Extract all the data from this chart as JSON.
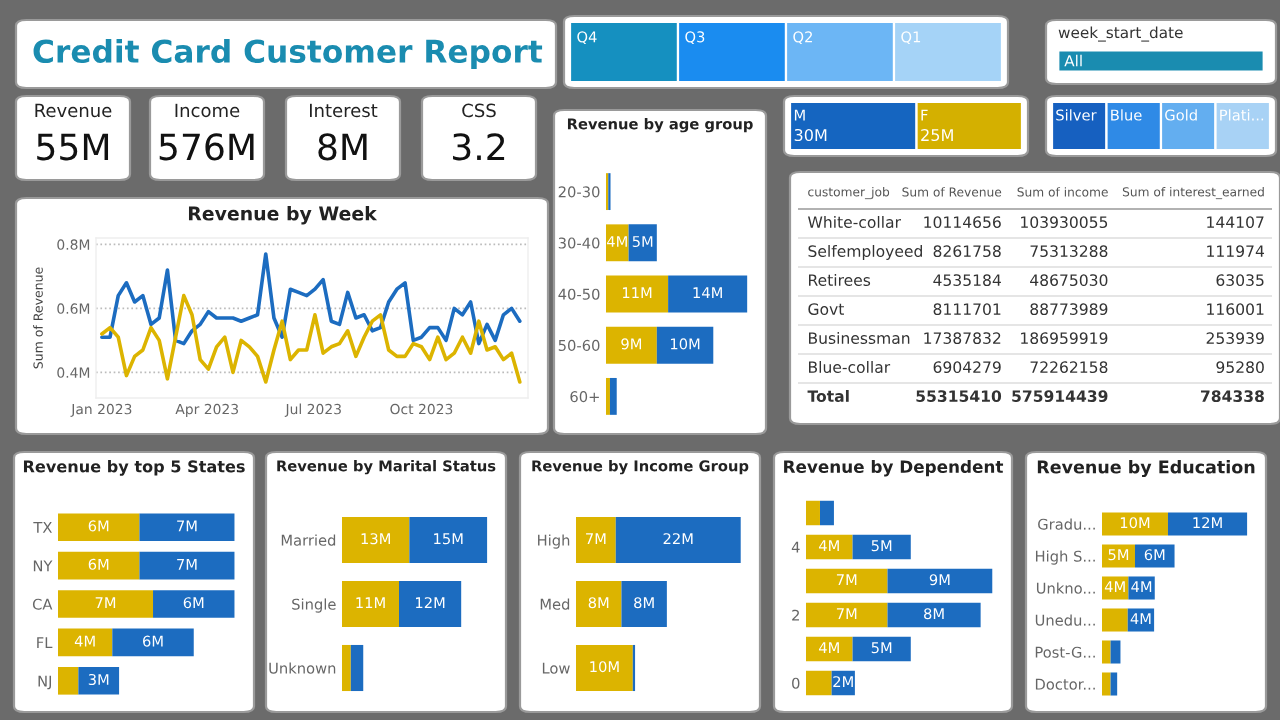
{
  "chart_data": [
    {
      "type": "other",
      "title": "Credit Card Customer Report",
      "color": "#1a8cb0"
    },
    {
      "type": "other",
      "categories": [
        "Q4",
        "Q3",
        "Q2",
        "Q1"
      ],
      "colors": [
        "#1590c0",
        "#1a8cf0",
        "#6cb6f5",
        "#a5d3f7"
      ]
    },
    {
      "type": "other",
      "title": "week_start_date",
      "annotations": [
        "All"
      ],
      "color": "#1a8cb0"
    },
    {
      "type": "other",
      "title": "Revenue",
      "annotations": [
        "55M"
      ]
    },
    {
      "type": "other",
      "title": "Income",
      "annotations": [
        "576M"
      ]
    },
    {
      "type": "other",
      "title": "Interest",
      "annotations": [
        "8M"
      ]
    },
    {
      "type": "other",
      "title": "CSS",
      "annotations": [
        "3.2"
      ]
    },
    {
      "type": "bar",
      "orientation": "horizontal",
      "stacked": true,
      "title": "Revenue by age group",
      "categories": [
        "20-30",
        "30-40",
        "40-50",
        "50-60",
        "60+"
      ],
      "series": [
        {
          "color": "#dcb400",
          "values": [
            0.4,
            4,
            11,
            9,
            0.7
          ],
          "value_labels": [
            null,
            "4M",
            "11M",
            "9M",
            null
          ]
        },
        {
          "color": "#1c6cc0",
          "values": [
            0.4,
            5,
            14,
            10,
            1.2
          ],
          "value_labels": [
            null,
            "5M",
            "14M",
            "10M",
            null
          ]
        }
      ]
    },
    {
      "type": "other",
      "categories": [
        "M",
        "F"
      ],
      "values": [
        30,
        25
      ],
      "value_labels": [
        "30M",
        "25M"
      ],
      "colors": [
        "#1565c0",
        "#d4b000"
      ]
    },
    {
      "type": "other",
      "categories": [
        "Silver",
        "Blue",
        "Gold",
        "Plati..."
      ],
      "colors": [
        "#1660c0",
        "#2f8ae6",
        "#63aef0",
        "#a8d2f5"
      ]
    },
    {
      "type": "line",
      "title": "Revenue by Week",
      "ylabel": "Sum of Revenue",
      "grid": "y",
      "x": [
        "2023-01-01",
        "2023-01-08",
        "2023-01-15",
        "2023-01-22",
        "2023-01-29",
        "2023-02-05",
        "2023-02-12",
        "2023-02-19",
        "2023-02-26",
        "2023-03-05",
        "2023-03-12",
        "2023-03-19",
        "2023-03-26",
        "2023-04-02",
        "2023-04-09",
        "2023-04-16",
        "2023-04-23",
        "2023-04-30",
        "2023-05-07",
        "2023-05-14",
        "2023-05-21",
        "2023-05-28",
        "2023-06-04",
        "2023-06-11",
        "2023-06-18",
        "2023-06-25",
        "2023-07-02",
        "2023-07-09",
        "2023-07-16",
        "2023-07-23",
        "2023-07-30",
        "2023-08-06",
        "2023-08-13",
        "2023-08-20",
        "2023-08-27",
        "2023-09-03",
        "2023-09-10",
        "2023-09-17",
        "2023-09-24",
        "2023-10-01",
        "2023-10-08",
        "2023-10-15",
        "2023-10-22",
        "2023-10-29",
        "2023-11-05",
        "2023-11-12",
        "2023-11-19",
        "2023-11-26",
        "2023-12-03",
        "2023-12-10",
        "2023-12-17",
        "2023-12-24"
      ],
      "series": [
        {
          "color": "#1c6cc0",
          "values": [
            0.51,
            0.51,
            0.64,
            0.68,
            0.62,
            0.64,
            0.55,
            0.57,
            0.72,
            0.5,
            0.49,
            0.53,
            0.55,
            0.59,
            0.57,
            0.57,
            0.57,
            0.56,
            0.57,
            0.58,
            0.77,
            0.57,
            0.51,
            0.66,
            0.65,
            0.64,
            0.66,
            0.69,
            0.56,
            0.55,
            0.65,
            0.57,
            0.58,
            0.53,
            0.54,
            0.62,
            0.66,
            0.68,
            0.5,
            0.51,
            0.54,
            0.54,
            0.5,
            0.6,
            0.58,
            0.62,
            0.49,
            0.55,
            0.5,
            0.58,
            0.6,
            0.56
          ]
        },
        {
          "color": "#dcb400",
          "values": [
            0.52,
            0.54,
            0.51,
            0.39,
            0.45,
            0.47,
            0.54,
            0.5,
            0.38,
            0.51,
            0.64,
            0.58,
            0.44,
            0.41,
            0.48,
            0.51,
            0.4,
            0.5,
            0.48,
            0.45,
            0.37,
            0.47,
            0.56,
            0.44,
            0.47,
            0.47,
            0.58,
            0.46,
            0.48,
            0.49,
            0.53,
            0.45,
            0.51,
            0.56,
            0.58,
            0.47,
            0.45,
            0.45,
            0.49,
            0.48,
            0.44,
            0.51,
            0.44,
            0.46,
            0.51,
            0.46,
            0.56,
            0.47,
            0.48,
            0.44,
            0.46,
            0.37
          ]
        }
      ],
      "xlim": [
        "2022-12-27",
        "2023-12-31"
      ],
      "xticks": [
        {
          "value": "2023-01-01",
          "label": "Jan 2023"
        },
        {
          "value": "2023-04-01",
          "label": "Apr 2023"
        },
        {
          "value": "2023-07-01",
          "label": "Jul 2023"
        },
        {
          "value": "2023-10-01",
          "label": "Oct 2023"
        }
      ],
      "ylim": [
        0.32,
        0.82
      ],
      "yticks": [
        {
          "value": 0.4,
          "label": "0.4M"
        },
        {
          "value": 0.6,
          "label": "0.6M"
        },
        {
          "value": 0.8,
          "label": "0.8M"
        }
      ]
    },
    {
      "type": "other",
      "categories": [
        "customer_job",
        "Sum of Revenue",
        "Sum of income",
        "Sum of interest_earned"
      ],
      "y_categories": [
        "White-collar",
        "Selfemployeed",
        "Retirees",
        "Govt",
        "Businessman",
        "Blue-collar",
        "Total"
      ],
      "cell_labels": [
        [
          "10114656",
          "103930055",
          "144107"
        ],
        [
          "8261758",
          "75313288",
          "111974"
        ],
        [
          "4535184",
          "48675030",
          "63035"
        ],
        [
          "8111701",
          "88773989",
          "116001"
        ],
        [
          "17387832",
          "186959919",
          "253939"
        ],
        [
          "6904279",
          "72262158",
          "95280"
        ],
        [
          "55315410",
          "575914439",
          "784338"
        ]
      ]
    },
    {
      "type": "bar",
      "orientation": "horizontal",
      "stacked": true,
      "title": "Revenue by top 5 States",
      "categories": [
        "TX",
        "NY",
        "CA",
        "FL",
        "NJ"
      ],
      "series": [
        {
          "color": "#dcb400",
          "values": [
            6,
            6,
            7,
            4,
            1.5
          ],
          "value_labels": [
            "6M",
            "6M",
            "7M",
            "4M",
            null
          ]
        },
        {
          "color": "#1c6cc0",
          "values": [
            7,
            7,
            6,
            6,
            3
          ],
          "value_labels": [
            "7M",
            "7M",
            "6M",
            "6M",
            "3M"
          ]
        }
      ]
    },
    {
      "type": "bar",
      "orientation": "horizontal",
      "stacked": true,
      "title": "Revenue by Marital Status",
      "categories": [
        "Married",
        "Single",
        "Unknown"
      ],
      "series": [
        {
          "color": "#dcb400",
          "values": [
            13,
            11,
            1.7
          ],
          "value_labels": [
            "13M",
            "11M",
            null
          ]
        },
        {
          "color": "#1c6cc0",
          "values": [
            15,
            12,
            2.4
          ],
          "value_labels": [
            "15M",
            "12M",
            null
          ]
        }
      ]
    },
    {
      "type": "bar",
      "orientation": "horizontal",
      "stacked": true,
      "title": "Revenue by Income Group",
      "categories": [
        "High",
        "Med",
        "Low"
      ],
      "series": [
        {
          "color": "#dcb400",
          "values": [
            7,
            8,
            10
          ],
          "value_labels": [
            "7M",
            "8M",
            "10M"
          ]
        },
        {
          "color": "#1c6cc0",
          "values": [
            22,
            8,
            0.4
          ],
          "value_labels": [
            "22M",
            "8M",
            null
          ]
        }
      ]
    },
    {
      "type": "bar",
      "orientation": "horizontal",
      "stacked": true,
      "title": "Revenue by Dependent",
      "categories": [
        null,
        "4",
        null,
        "2",
        null,
        "0"
      ],
      "series": [
        {
          "color": "#dcb400",
          "values": [
            1.2,
            4,
            7,
            7,
            4,
            2.2
          ],
          "value_labels": [
            null,
            "4M",
            "7M",
            "7M",
            "4M",
            null
          ]
        },
        {
          "color": "#1c6cc0",
          "values": [
            1.2,
            5,
            9,
            8,
            5,
            2
          ],
          "value_labels": [
            null,
            "5M",
            "9M",
            "8M",
            "5M",
            "2M"
          ]
        }
      ]
    },
    {
      "type": "bar",
      "orientation": "horizontal",
      "stacked": true,
      "title": "Revenue by Education",
      "categories": [
        "Gradu...",
        "High S...",
        "Unkno...",
        "Unedu...",
        "Post-G...",
        "Doctor..."
      ],
      "series": [
        {
          "color": "#dcb400",
          "values": [
            10,
            5,
            4,
            3.9,
            1.3,
            1.3
          ],
          "value_labels": [
            "10M",
            "5M",
            "4M",
            null,
            null,
            null
          ]
        },
        {
          "color": "#1c6cc0",
          "values": [
            12,
            6,
            4,
            4,
            1.5,
            1
          ],
          "value_labels": [
            "12M",
            "6M",
            "4M",
            "4M",
            null,
            null
          ]
        }
      ]
    }
  ]
}
